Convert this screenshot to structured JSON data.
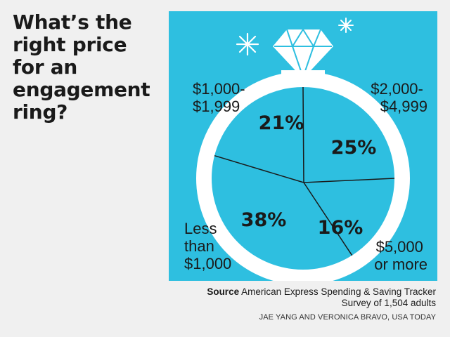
{
  "headline": "What’s the right price for an engagement ring?",
  "source_label": "Source",
  "source_text": "American Express Spending & Saving Tracker",
  "source_text_2": "Survey of 1,504 adults",
  "credit": "JAE YANG AND VERONICA BRAVO, USA TODAY",
  "colors": {
    "background": "#f0f0f0",
    "panel": "#2ebfe0",
    "ring": "#ffffff",
    "text": "#1a1a1a"
  },
  "chart_data": {
    "type": "pie",
    "categories": [
      [
        "$1,000-",
        "$1,999"
      ],
      [
        "$2,000-",
        "$4,999"
      ],
      [
        "$5,000",
        "or more"
      ],
      [
        "Less",
        "than",
        "$1,000"
      ]
    ],
    "values": [
      21,
      25,
      16,
      38
    ],
    "labels": [
      "21%",
      "25%",
      "16%",
      "38%"
    ]
  }
}
